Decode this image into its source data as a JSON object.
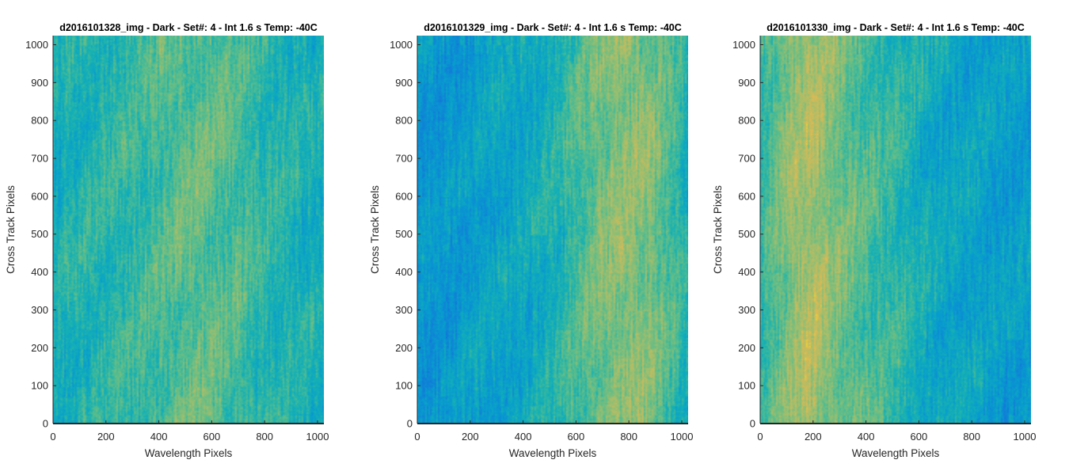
{
  "chart_data": [
    {
      "type": "heatmap",
      "title": "d2016101328_img - Dark - Set#: 4 - Int 1.6 s Temp: -40C",
      "xlabel": "Wavelength Pixels",
      "ylabel": "Cross Track Pixels",
      "xlim": [
        0,
        1024
      ],
      "ylim": [
        0,
        1024
      ],
      "xticks": [
        "0",
        "200",
        "400",
        "600",
        "800",
        "1000"
      ],
      "yticks": [
        "0",
        "100",
        "200",
        "300",
        "400",
        "500",
        "600",
        "700",
        "800",
        "900",
        "1000"
      ],
      "colormap": "parula",
      "column_intensity_profile": [
        0.48,
        0.5,
        0.52,
        0.53,
        0.55,
        0.57,
        0.6,
        0.62,
        0.64,
        0.63,
        0.6,
        0.57,
        0.54,
        0.52,
        0.5,
        0.48
      ]
    },
    {
      "type": "heatmap",
      "title": "d2016101329_img - Dark - Set#: 4 - Int 1.6 s Temp: -40C",
      "xlabel": "Wavelength Pixels",
      "ylabel": "Cross Track Pixels",
      "xlim": [
        0,
        1024
      ],
      "ylim": [
        0,
        1024
      ],
      "xticks": [
        "0",
        "200",
        "400",
        "600",
        "800",
        "1000"
      ],
      "yticks": [
        "0",
        "100",
        "200",
        "300",
        "400",
        "500",
        "600",
        "700",
        "800",
        "900",
        "1000"
      ],
      "colormap": "parula",
      "column_intensity_profile": [
        0.36,
        0.37,
        0.38,
        0.4,
        0.42,
        0.43,
        0.45,
        0.48,
        0.53,
        0.6,
        0.66,
        0.7,
        0.71,
        0.68,
        0.6,
        0.5
      ]
    },
    {
      "type": "heatmap",
      "title": "d2016101330_img - Dark - Set#: 4 - Int 1.6 s Temp: -40C",
      "xlabel": "Wavelength Pixels",
      "ylabel": "Cross Track Pixels",
      "xlim": [
        0,
        1024
      ],
      "ylim": [
        0,
        1024
      ],
      "xticks": [
        "0",
        "200",
        "400",
        "600",
        "800",
        "1000"
      ],
      "yticks": [
        "0",
        "100",
        "200",
        "300",
        "400",
        "500",
        "600",
        "700",
        "800",
        "900",
        "1000"
      ],
      "colormap": "parula",
      "column_intensity_profile": [
        0.55,
        0.66,
        0.74,
        0.76,
        0.7,
        0.64,
        0.6,
        0.56,
        0.52,
        0.48,
        0.45,
        0.43,
        0.42,
        0.4,
        0.39,
        0.4
      ]
    }
  ]
}
